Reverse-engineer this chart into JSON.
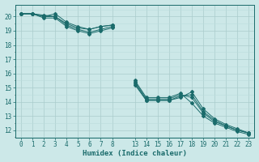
{
  "xlabel": "Humidex (Indice chaleur)",
  "bg_color": "#cce8e8",
  "line_color": "#1a6b6b",
  "grid_major_color": "#aacccc",
  "grid_minor_color": "#bbdddd",
  "xlim_real": [
    -0.5,
    23.5
  ],
  "ylim": [
    11.5,
    20.85
  ],
  "yticks": [
    12,
    13,
    14,
    15,
    16,
    17,
    18,
    19,
    20
  ],
  "xtick_labels": [
    "0",
    "1",
    "2",
    "3",
    "4",
    "5",
    "6",
    "7",
    "8",
    "13",
    "14",
    "15",
    "16",
    "17",
    "18",
    "19",
    "20",
    "21",
    "22",
    "23"
  ],
  "xtick_pos": [
    0,
    1,
    2,
    3,
    4,
    5,
    6,
    7,
    8,
    10,
    11,
    12,
    13,
    14,
    15,
    16,
    17,
    18,
    19,
    20
  ],
  "xlim": [
    -0.5,
    20.5
  ],
  "lines": [
    {
      "x": [
        0,
        1,
        2,
        3,
        4,
        5,
        6,
        7,
        8
      ],
      "y": [
        20.2,
        20.2,
        20.1,
        20.0,
        19.5,
        19.2,
        19.1,
        19.3,
        19.4
      ]
    },
    {
      "x": [
        10,
        11,
        12,
        13,
        14,
        15,
        16,
        17,
        18,
        19,
        20
      ],
      "y": [
        15.3,
        14.1,
        14.1,
        14.1,
        14.4,
        14.5,
        13.3,
        12.7,
        12.3,
        12.0,
        11.8
      ]
    },
    {
      "x": [
        0,
        1,
        2,
        3,
        4,
        5,
        6,
        7,
        8
      ],
      "y": [
        20.2,
        20.2,
        20.0,
        20.2,
        19.6,
        19.3,
        19.1,
        19.3,
        19.4
      ]
    },
    {
      "x": [
        10,
        11,
        12,
        13,
        14,
        15,
        16,
        17,
        18,
        19,
        20
      ],
      "y": [
        15.2,
        14.1,
        14.1,
        14.1,
        14.3,
        14.7,
        13.5,
        12.8,
        12.4,
        12.1,
        11.8
      ]
    },
    {
      "x": [
        0,
        1,
        2,
        3,
        4,
        5,
        6,
        7,
        8
      ],
      "y": [
        20.2,
        20.2,
        20.0,
        20.0,
        19.4,
        19.1,
        18.9,
        19.1,
        19.3
      ]
    },
    {
      "x": [
        10,
        11,
        12,
        13,
        14,
        15,
        16,
        17,
        18,
        19,
        20
      ],
      "y": [
        15.4,
        14.2,
        14.2,
        14.2,
        14.5,
        14.3,
        13.2,
        12.6,
        12.3,
        12.0,
        11.8
      ]
    },
    {
      "x": [
        0,
        1,
        2,
        3,
        4,
        5,
        6,
        7,
        8
      ],
      "y": [
        20.2,
        20.2,
        19.9,
        19.9,
        19.3,
        19.0,
        18.8,
        19.0,
        19.2
      ]
    },
    {
      "x": [
        10,
        11,
        12,
        13,
        14,
        15,
        16,
        17,
        18,
        19,
        20
      ],
      "y": [
        15.5,
        14.3,
        14.3,
        14.3,
        14.6,
        13.9,
        13.0,
        12.5,
        12.2,
        11.9,
        11.7
      ]
    }
  ]
}
